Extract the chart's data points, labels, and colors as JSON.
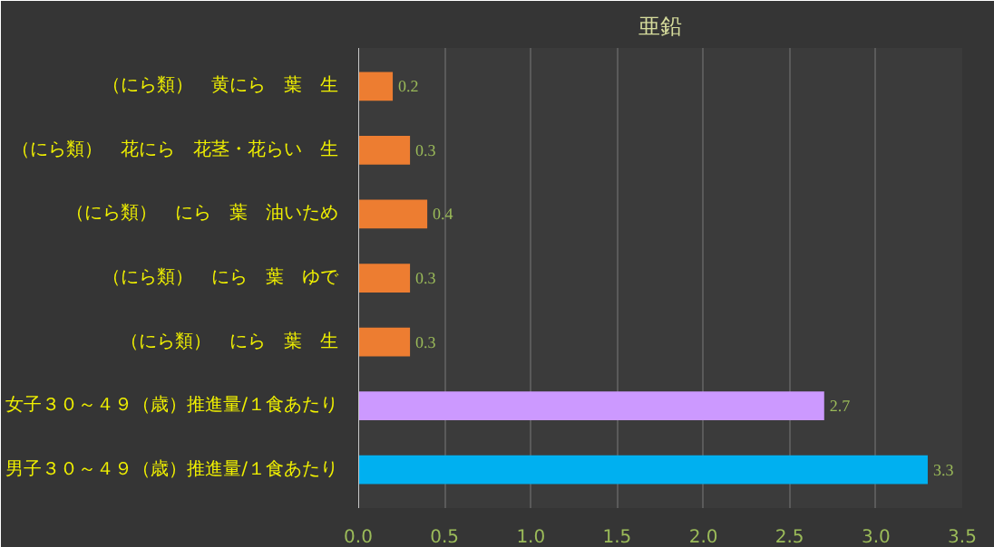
{
  "chart_data": {
    "type": "bar",
    "orientation": "horizontal",
    "title": "亜鉛",
    "categories": [
      "（にら類）　黄にら　葉　生",
      "（にら類）　花にら　花茎・花らい　生",
      "（にら類）　にら　葉　油いため",
      "（にら類）　にら　葉　ゆで",
      "（にら類）　にら　葉　生",
      "女子３０～４９（歳）推進量/１食あたり",
      "男子３０～４９（歳）推進量/１食あたり"
    ],
    "values": [
      0.2,
      0.3,
      0.4,
      0.3,
      0.3,
      2.7,
      3.3
    ],
    "colors": [
      "#ed7d31",
      "#ed7d31",
      "#ed7d31",
      "#ed7d31",
      "#ed7d31",
      "#cc99ff",
      "#00b0f0"
    ],
    "xlim": [
      0,
      3.5
    ],
    "xticks": [
      {
        "value": 0,
        "label": "0.0"
      },
      {
        "value": 0.5,
        "label": "0.5"
      },
      {
        "value": 1,
        "label": "1.0"
      },
      {
        "value": 1.5,
        "label": "1.5"
      },
      {
        "value": 2,
        "label": "2.0"
      },
      {
        "value": 2.5,
        "label": "2.5"
      },
      {
        "value": 3,
        "label": "3.0"
      },
      {
        "value": 3.5,
        "label": "3.5"
      }
    ],
    "grid": "x",
    "data_labels": true
  }
}
